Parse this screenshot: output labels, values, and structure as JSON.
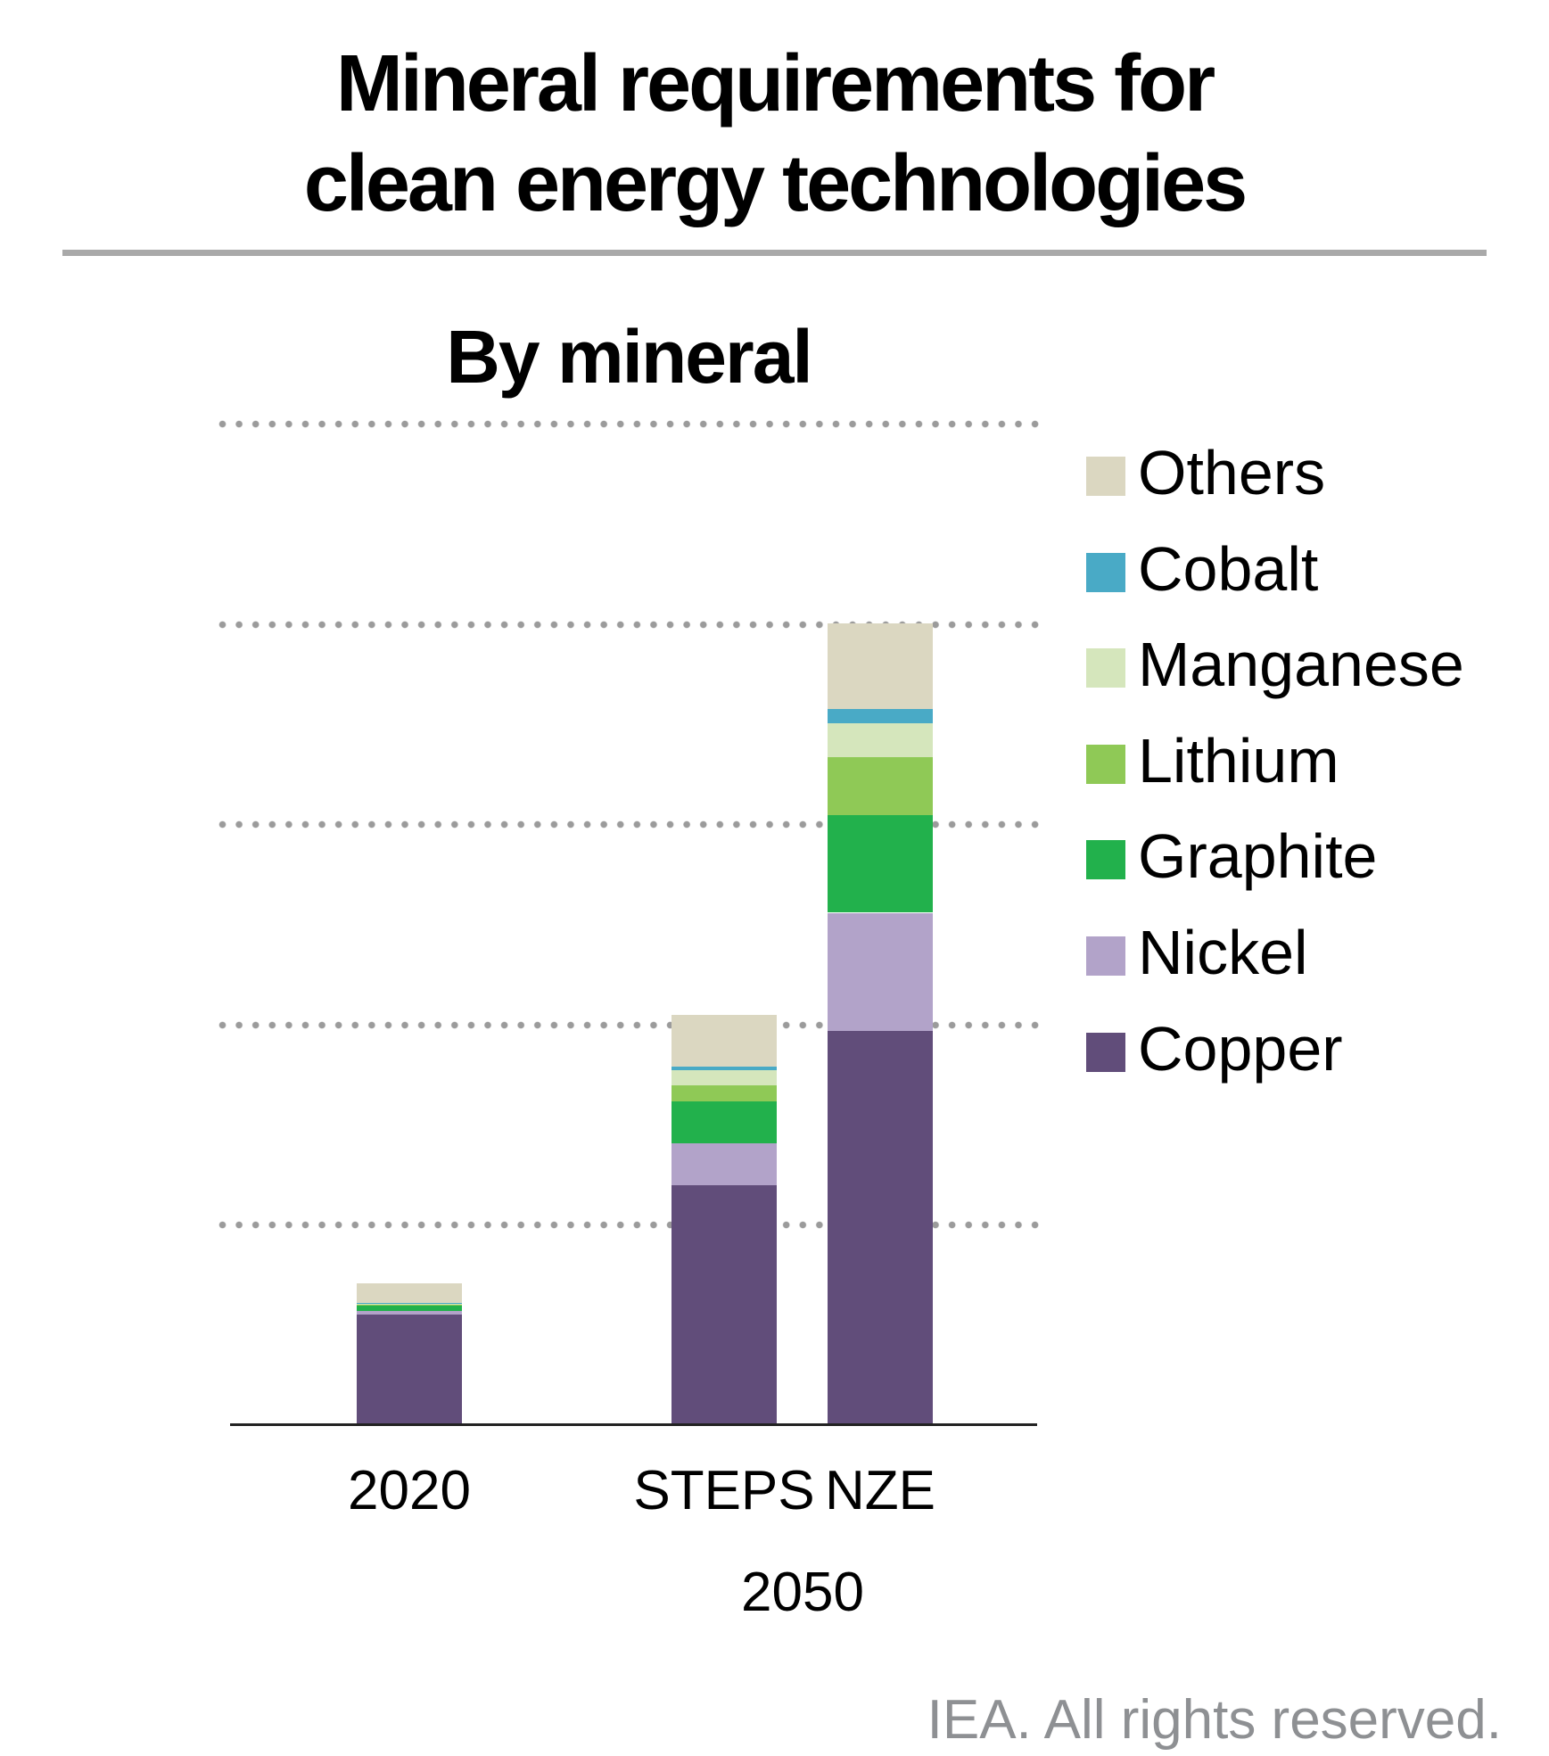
{
  "header": {
    "title_line1": "Mineral requirements for",
    "title_line2": "clean energy technologies"
  },
  "footer": {
    "credit": "IEA. All rights reserved."
  },
  "colors": {
    "gridline": "#9B9B9B",
    "axis_line": "#222222",
    "divider": "#A9A9A9",
    "credit_text": "#8E9093",
    "text": "#000000"
  },
  "chart_data": {
    "type": "bar",
    "stacked": true,
    "title": "By mineral",
    "categories": [
      "2020",
      "STEPS",
      "NZE"
    ],
    "group_label": "2050",
    "group_label_applies_to": [
      "STEPS",
      "NZE"
    ],
    "units": "index units (y-axis unlabeled; gridlines every 10, 2020 total ≈ 7)",
    "axis_labels_shown": false,
    "grid": "dotted-horizontal",
    "gridline_values": [
      10,
      20,
      30,
      40,
      50
    ],
    "ylim": [
      0,
      50
    ],
    "legend_position": "right",
    "series_bottom_to_top": [
      {
        "name": "Copper",
        "color": "#614D7A",
        "values": [
          5.53,
          11.96,
          19.69
        ]
      },
      {
        "name": "Nickel",
        "color": "#B2A3C9",
        "values": [
          0.16,
          2.1,
          5.9
        ]
      },
      {
        "name": "Graphite",
        "color": "#22B14C",
        "values": [
          0.29,
          2.1,
          4.86
        ]
      },
      {
        "name": "Lithium",
        "color": "#8FC956",
        "values": [
          0.02,
          0.83,
          2.91
        ]
      },
      {
        "name": "Manganese",
        "color": "#D5E6BC",
        "values": [
          0.09,
          0.74,
          1.71
        ]
      },
      {
        "name": "Cobalt",
        "color": "#49AAC6",
        "values": [
          0.02,
          0.18,
          0.71
        ]
      },
      {
        "name": "Others",
        "color": "#DBD7C1",
        "values": [
          0.96,
          2.56,
          4.27
        ]
      }
    ],
    "totals": [
      7.07,
      20.47,
      40.05
    ],
    "legend": [
      {
        "label": "Others",
        "color": "#DBD7C1"
      },
      {
        "label": "Cobalt",
        "color": "#49AAC6"
      },
      {
        "label": "Manganese",
        "color": "#D5E6BC"
      },
      {
        "label": "Lithium",
        "color": "#8FC956"
      },
      {
        "label": "Graphite",
        "color": "#22B14C"
      },
      {
        "label": "Nickel",
        "color": "#B2A3C9"
      },
      {
        "label": "Copper",
        "color": "#614D7A"
      }
    ]
  }
}
